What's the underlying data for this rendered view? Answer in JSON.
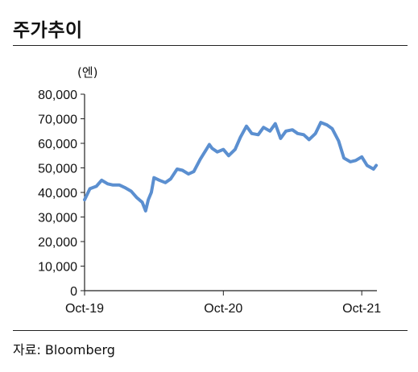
{
  "header": {
    "title": "주가추이"
  },
  "footer": {
    "source": "자료: Bloomberg"
  },
  "chart_data": {
    "type": "line",
    "title": "",
    "xlabel": "",
    "ylabel": "(엔)",
    "ylim": [
      0,
      80000
    ],
    "yticks": [
      "0",
      "10,000",
      "20,000",
      "30,000",
      "40,000",
      "50,000",
      "60,000",
      "70,000",
      "80,000"
    ],
    "yticks_values": [
      0,
      10000,
      20000,
      30000,
      40000,
      50000,
      60000,
      70000,
      80000
    ],
    "xticks": [
      "Oct-19",
      "Oct-20",
      "Oct-21"
    ],
    "xticks_dates": [
      "2019-10-01",
      "2020-10-01",
      "2021-10-01"
    ],
    "xlim": [
      "2019-10-01",
      "2021-11-10"
    ],
    "grid": false,
    "legend": "none",
    "line_color": "#5b8fd0",
    "series": [
      {
        "x": [
          "2019-10-01",
          "2019-10-15",
          "2019-11-01",
          "2019-11-15",
          "2019-12-01",
          "2019-12-15",
          "2020-01-01",
          "2020-01-15",
          "2020-02-01",
          "2020-02-15",
          "2020-03-01",
          "2020-03-10",
          "2020-03-17",
          "2020-03-25",
          "2020-04-01",
          "2020-04-15",
          "2020-05-01",
          "2020-05-15",
          "2020-06-01",
          "2020-06-15",
          "2020-07-01",
          "2020-07-15",
          "2020-08-01",
          "2020-08-15",
          "2020-08-25",
          "2020-09-01",
          "2020-09-15",
          "2020-10-01",
          "2020-10-15",
          "2020-11-01",
          "2020-11-15",
          "2020-12-01",
          "2020-12-15",
          "2021-01-01",
          "2021-01-15",
          "2021-02-01",
          "2021-02-15",
          "2021-03-01",
          "2021-03-15",
          "2021-04-01",
          "2021-04-15",
          "2021-05-01",
          "2021-05-15",
          "2021-06-01",
          "2021-06-15",
          "2021-07-01",
          "2021-07-15",
          "2021-08-01",
          "2021-08-15",
          "2021-09-01",
          "2021-09-15",
          "2021-10-01",
          "2021-10-15",
          "2021-11-01",
          "2021-11-08"
        ],
        "y": [
          37000,
          41500,
          42500,
          45000,
          43500,
          43000,
          43000,
          42000,
          40500,
          38000,
          36000,
          32500,
          37000,
          40000,
          46000,
          45000,
          44000,
          45500,
          49500,
          49000,
          47500,
          48500,
          53500,
          57000,
          59500,
          58000,
          56500,
          57500,
          55000,
          57500,
          62500,
          67000,
          64000,
          63500,
          66500,
          65000,
          68000,
          62000,
          65000,
          65500,
          64000,
          63500,
          61500,
          64000,
          68500,
          67500,
          66000,
          61000,
          54000,
          52500,
          53000,
          54500,
          51000,
          49500,
          51000
        ]
      }
    ]
  }
}
